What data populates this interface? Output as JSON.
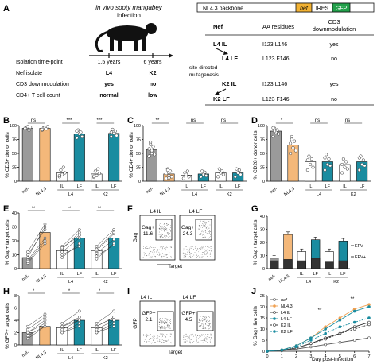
{
  "panelA": {
    "letter": "A",
    "infection_line1": "in vivo sooty mangabey",
    "infection_line2": "infection",
    "timeline_labels": [
      "Isolation time-point",
      "Nef isolate",
      "CD3 downmodulation",
      "CD4+ T cell count"
    ],
    "col1": [
      "1.5 years",
      "L4",
      "yes",
      "normal"
    ],
    "col2": [
      "6 years",
      "K2",
      "no",
      "low"
    ],
    "construct": {
      "backbone": "NL4.3 backbone",
      "nef": "nef",
      "ires": "IRES",
      "gfp": "GFP"
    },
    "table_headers": [
      "Nef",
      "AA residues",
      "CD3",
      "downmodulation"
    ],
    "rows": [
      {
        "nef": "L4 IL",
        "aa": "I123 L146",
        "cd3": "yes"
      },
      {
        "nef": "L4 LF",
        "aa": "L123 F146",
        "cd3": "no"
      },
      {
        "nef": "K2 IL",
        "aa": "I123 L146",
        "cd3": "yes"
      },
      {
        "nef": "K2 LF",
        "aa": "L123 F146",
        "cd3": "no"
      }
    ],
    "mutagenesis_line1": "site-directed",
    "mutagenesis_line2": "mutagenesis"
  },
  "panels": {
    "B": {
      "letter": "B",
      "ylabel": "% CD3+ donor cells",
      "sig": [
        "ns",
        "***",
        "***"
      ]
    },
    "C": {
      "letter": "C",
      "ylabel": "% CD4+ donor cells",
      "sig": [
        "**",
        "ns",
        "ns"
      ]
    },
    "D": {
      "letter": "D",
      "ylabel": "% CD28+ donor cells",
      "sig": [
        "*",
        "ns",
        "ns"
      ]
    },
    "E": {
      "letter": "E",
      "ylabel": "% Gag+ target cells",
      "sig": [
        "**",
        "**",
        "**"
      ]
    },
    "F": {
      "letter": "F",
      "title_left": "L4 IL",
      "title_right": "L4 LF",
      "gate_left": "Gag+",
      "value_left": "11.6",
      "gate_right": "Gag+",
      "value_right": "24.3",
      "ylabel": "Gag",
      "xlabel": "Target"
    },
    "G": {
      "letter": "G",
      "ylabel": "% Gag+ target cells",
      "legend_pos": "EFV-",
      "legend_neg": "EFV+"
    },
    "H": {
      "letter": "H",
      "ylabel": "% GFP+ target cells",
      "sig": [
        "*",
        "*",
        "*"
      ]
    },
    "I": {
      "letter": "I",
      "title_left": "L4 IL",
      "title_right": "L4 LF",
      "gate_left": "GFP+",
      "value_left": "2.1",
      "gate_right": "GFP+",
      "value_right": "4.5",
      "ylabel": "GFP",
      "xlabel": "Target"
    },
    "J": {
      "letter": "J",
      "ylabel": "% Gag+ live cells",
      "xlabel": "Day post-infection",
      "sig": [
        "**",
        "**"
      ]
    }
  },
  "common": {
    "x_labels": [
      "nef-",
      "NL4.3",
      "IL",
      "LF",
      "IL",
      "LF"
    ],
    "group_L4": "L4",
    "group_K2": "K2"
  },
  "chart_data": [
    {
      "panel": "B",
      "type": "bar",
      "ylabel": "% CD3+ donor cells",
      "ylim": [
        0,
        100
      ],
      "yticks": [
        0,
        25,
        50,
        75,
        100
      ],
      "categories": [
        "nef-",
        "NL4.3",
        "L4 IL",
        "L4 LF",
        "K2 IL",
        "K2 LF"
      ],
      "values": [
        95,
        95,
        15,
        85,
        13,
        86
      ],
      "points": [
        [
          94,
          96,
          98,
          92,
          97,
          95
        ],
        [
          92,
          96,
          97,
          94,
          98,
          93
        ],
        [
          8,
          20,
          12,
          25,
          15,
          10
        ],
        [
          78,
          92,
          85,
          88,
          80,
          90
        ],
        [
          7,
          18,
          10,
          22,
          14,
          9
        ],
        [
          80,
          93,
          86,
          90,
          82,
          88
        ]
      ]
    },
    {
      "panel": "C",
      "type": "bar",
      "ylabel": "% CD4+ donor cells",
      "ylim": [
        0,
        100
      ],
      "yticks": [
        0,
        25,
        50,
        75,
        100
      ],
      "categories": [
        "nef-",
        "NL4.3",
        "L4 IL",
        "L4 LF",
        "K2 IL",
        "K2 LF"
      ],
      "values": [
        57,
        13,
        11,
        13,
        15,
        15
      ],
      "points": [
        [
          45,
          70,
          55,
          62,
          48,
          58,
          66,
          50
        ],
        [
          5,
          22,
          10,
          18,
          8,
          14,
          20,
          6
        ],
        [
          5,
          15,
          12,
          18,
          8
        ],
        [
          8,
          18,
          12,
          16,
          10
        ],
        [
          8,
          22,
          15,
          18,
          12
        ],
        [
          8,
          22,
          15,
          20,
          12
        ]
      ]
    },
    {
      "panel": "D",
      "type": "bar",
      "ylabel": "% CD28+ donor cells",
      "ylim": [
        0,
        100
      ],
      "yticks": [
        0,
        25,
        50,
        75,
        100
      ],
      "categories": [
        "nef-",
        "NL4.3",
        "L4 IL",
        "L4 LF",
        "K2 IL",
        "K2 LF"
      ],
      "values": [
        90,
        65,
        35,
        35,
        30,
        35
      ],
      "points": [
        [
          80,
          95,
          88,
          92,
          85,
          96,
          90
        ],
        [
          50,
          80,
          60,
          72,
          55,
          68,
          75
        ],
        [
          20,
          45,
          30,
          40,
          25,
          38
        ],
        [
          20,
          48,
          30,
          40,
          28,
          42
        ],
        [
          15,
          40,
          25,
          35,
          22,
          30
        ],
        [
          20,
          45,
          30,
          38,
          28,
          42
        ]
      ]
    },
    {
      "panel": "E",
      "type": "bar",
      "ylabel": "% Gag+ target cells",
      "ylim": [
        0,
        40
      ],
      "yticks": [
        0,
        10,
        20,
        30,
        40
      ],
      "categories": [
        "nef-",
        "NL4.3",
        "L4 IL",
        "L4 LF",
        "K2 IL",
        "K2 LF"
      ],
      "values": [
        8,
        26,
        13,
        22,
        13,
        22
      ],
      "pairs": [
        [
          [
            4,
            18
          ],
          [
            8,
            30
          ],
          [
            10,
            28
          ],
          [
            6,
            22
          ],
          [
            12,
            32
          ],
          [
            5,
            20
          ]
        ],
        [
          [
            10,
            16
          ],
          [
            14,
            26
          ],
          [
            12,
            22
          ],
          [
            16,
            28
          ],
          [
            8,
            18
          ],
          [
            15,
            24
          ]
        ],
        [
          [
            9,
            17
          ],
          [
            13,
            25
          ],
          [
            11,
            21
          ],
          [
            16,
            28
          ],
          [
            7,
            18
          ],
          [
            14,
            26
          ]
        ]
      ]
    },
    {
      "panel": "G",
      "type": "bar",
      "ylabel": "% Gag+ target cells",
      "ylim": [
        0,
        40
      ],
      "yticks": [
        0,
        10,
        20,
        30,
        40
      ],
      "categories": [
        "nef-",
        "NL4.3",
        "L4 IL",
        "L4 LF",
        "K2 IL",
        "K2 LF"
      ],
      "series": [
        {
          "name": "EFV-",
          "values": [
            8,
            26,
            13,
            22,
            13,
            21
          ]
        },
        {
          "name": "EFV+",
          "values": [
            6,
            7,
            6,
            8,
            5,
            6
          ]
        }
      ]
    },
    {
      "panel": "H",
      "type": "bar",
      "ylabel": "% GFP+ target cells",
      "ylim": [
        0,
        8
      ],
      "yticks": [
        0,
        2,
        4,
        6,
        8
      ],
      "categories": [
        "nef-",
        "NL4.3",
        "L4 IL",
        "L4 LF",
        "K2 IL",
        "K2 LF"
      ],
      "values": [
        2,
        3,
        2.8,
        4,
        2.8,
        4
      ],
      "pairs": [
        [
          [
            1,
            3
          ],
          [
            2,
            4
          ],
          [
            1.5,
            3
          ],
          [
            2.5,
            4.5
          ],
          [
            3,
            5
          ],
          [
            2,
            3.5
          ]
        ],
        [
          [
            2,
            3.5
          ],
          [
            3,
            4.5
          ],
          [
            2.5,
            4
          ],
          [
            3.5,
            5.5
          ],
          [
            2,
            3
          ],
          [
            3,
            4
          ]
        ],
        [
          [
            2,
            3.5
          ],
          [
            3,
            4.5
          ],
          [
            2.5,
            4
          ],
          [
            3.5,
            5.5
          ],
          [
            2,
            3
          ],
          [
            3,
            4.5
          ]
        ]
      ]
    },
    {
      "panel": "J",
      "type": "line",
      "xlabel": "Day post-infection",
      "ylabel": "% Gag+ live cells",
      "x": [
        0,
        1,
        2,
        3,
        4,
        5,
        6,
        7
      ],
      "xlim": [
        0,
        7
      ],
      "xticks": [
        0,
        1,
        2,
        3,
        4,
        5,
        6,
        7
      ],
      "ylim": [
        0,
        25
      ],
      "yticks": [
        0,
        5,
        10,
        15,
        20,
        25
      ],
      "series": [
        {
          "name": "nef-",
          "values": [
            0,
            0.3,
            1,
            2,
            3,
            4,
            5,
            6
          ]
        },
        {
          "name": "NL4.3",
          "values": [
            0,
            0.6,
            2.5,
            6,
            11,
            15,
            19,
            21
          ]
        },
        {
          "name": "L4 IL",
          "values": [
            0,
            0.4,
            1.5,
            3.5,
            6,
            8,
            11,
            13
          ]
        },
        {
          "name": "L4 LF",
          "values": [
            0,
            0.6,
            2.5,
            6,
            10,
            14,
            18,
            20
          ]
        },
        {
          "name": "K2 IL",
          "values": [
            0,
            0.4,
            1.5,
            3.5,
            5.5,
            8,
            10,
            12
          ]
        },
        {
          "name": "K2 LF",
          "values": [
            0,
            0.5,
            2,
            5,
            8,
            11,
            13,
            15
          ]
        }
      ]
    }
  ]
}
